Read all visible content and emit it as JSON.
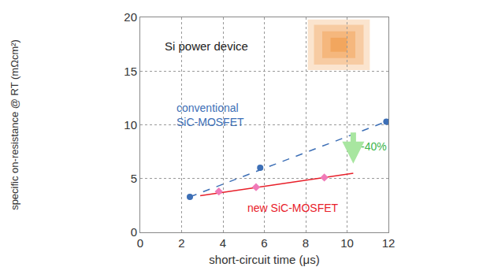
{
  "chart_data": {
    "type": "scatter",
    "xlabel": "short-circuit time (μs)",
    "ylabel": "specific on-resistance @ RT (mΩcm²)",
    "xlim": [
      0,
      12
    ],
    "xticks": [
      0,
      2,
      4,
      6,
      8,
      10,
      12
    ],
    "ylim": [
      0,
      20
    ],
    "yticks": [
      0,
      5,
      10,
      15,
      20
    ],
    "grid": true,
    "series": [
      {
        "name": "conventional SiC-MOSFET",
        "color": "#3d6fb6",
        "marker": "circle",
        "x": [
          2.4,
          5.8,
          11.9
        ],
        "values": [
          3.3,
          6.0,
          10.3
        ]
      },
      {
        "name": "new SiC-MOSFET",
        "color": "#f07ab8",
        "marker": "diamond",
        "x": [
          3.8,
          5.6,
          8.9
        ],
        "values": [
          3.8,
          4.2,
          5.1
        ]
      },
      {
        "type": "line",
        "color": "#3d6fb6",
        "line_style": "dashed",
        "x": [
          2.4,
          11.9
        ],
        "values": [
          3.3,
          10.3
        ]
      },
      {
        "type": "line",
        "color": "#e8202a",
        "line_style": "solid",
        "x": [
          2.9,
          10.3
        ],
        "values": [
          3.4,
          5.5
        ]
      }
    ],
    "annotations": [
      "Si power device",
      "-40%"
    ]
  }
}
